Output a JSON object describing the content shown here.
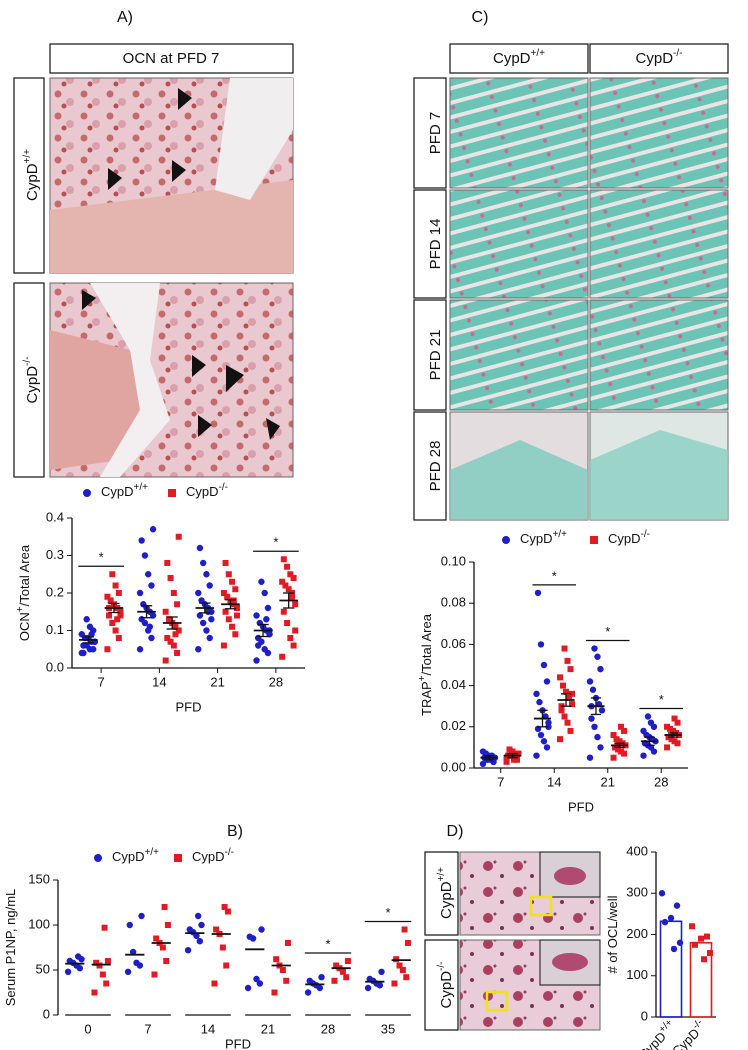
{
  "panels": {
    "A": {
      "label": "A)",
      "header": "OCN at PFD 7",
      "rows": [
        {
          "base": "CypD",
          "sup": "+/+"
        },
        {
          "base": "CypD",
          "sup": "-/-"
        }
      ]
    },
    "C": {
      "label": "C)",
      "columns": [
        {
          "base": "CypD",
          "sup": "+/+"
        },
        {
          "base": "CypD",
          "sup": "-/-"
        }
      ],
      "rows": [
        "PFD 7",
        "PFD 14",
        "PFD 21",
        "PFD 28"
      ]
    },
    "B": {
      "label": "B)"
    },
    "D": {
      "label": "D)",
      "rows": [
        {
          "base": "CypD",
          "sup": "+/+"
        },
        {
          "base": "CypD",
          "sup": "-/-"
        }
      ]
    }
  },
  "chart_data": [
    {
      "type": "dot",
      "ylabel": {
        "base": "OCN",
        "sup": "+",
        "rest": "/Total Area"
      },
      "xlabel": "PFD",
      "categories": [
        "7",
        "14",
        "21",
        "28"
      ],
      "ylim": [
        0,
        0.4
      ],
      "yticks": [
        {
          "value": 0,
          "label": "0.0"
        },
        0.1,
        0.2,
        0.3,
        0.4
      ],
      "series": [
        {
          "name": {
            "base": "CypD",
            "sup": "+/+"
          },
          "color": "#1f1fc8",
          "marker": "circle",
          "values": [
            [
              0.04,
              0.05,
              0.05,
              0.06,
              0.06,
              0.07,
              0.07,
              0.08,
              0.08,
              0.09,
              0.1,
              0.11,
              0.13,
              0.04,
              0.07,
              0.09
            ],
            [
              0.05,
              0.08,
              0.1,
              0.12,
              0.13,
              0.14,
              0.15,
              0.16,
              0.17,
              0.2,
              0.22,
              0.25,
              0.3,
              0.34,
              0.37,
              0.11
            ],
            [
              0.05,
              0.08,
              0.1,
              0.12,
              0.14,
              0.15,
              0.16,
              0.17,
              0.18,
              0.2,
              0.22,
              0.25,
              0.28,
              0.32,
              0.13,
              0.15
            ],
            [
              0.02,
              0.04,
              0.05,
              0.07,
              0.08,
              0.09,
              0.1,
              0.11,
              0.12,
              0.14,
              0.16,
              0.2,
              0.23,
              0.06,
              0.1,
              0.13
            ]
          ],
          "mean": [
            0.075,
            0.15,
            0.16,
            0.1
          ],
          "sem": [
            0.008,
            0.016,
            0.013,
            0.016
          ]
        },
        {
          "name": {
            "base": "CypD",
            "sup": "-/-"
          },
          "color": "#e01b24",
          "marker": "square",
          "values": [
            [
              0.05,
              0.08,
              0.1,
              0.12,
              0.14,
              0.15,
              0.16,
              0.17,
              0.18,
              0.19,
              0.2,
              0.22,
              0.25,
              0.16,
              0.14,
              0.13
            ],
            [
              0.02,
              0.04,
              0.06,
              0.07,
              0.08,
              0.1,
              0.11,
              0.12,
              0.13,
              0.15,
              0.17,
              0.2,
              0.24,
              0.28,
              0.35,
              0.09
            ],
            [
              0.06,
              0.09,
              0.11,
              0.13,
              0.15,
              0.16,
              0.17,
              0.18,
              0.19,
              0.2,
              0.21,
              0.23,
              0.25,
              0.28,
              0.14,
              0.18
            ],
            [
              0.03,
              0.06,
              0.08,
              0.12,
              0.15,
              0.17,
              0.19,
              0.21,
              0.22,
              0.23,
              0.24,
              0.25,
              0.27,
              0.29,
              0.1,
              0.2
            ]
          ],
          "mean": [
            0.16,
            0.12,
            0.17,
            0.18
          ],
          "sem": [
            0.012,
            0.016,
            0.012,
            0.02
          ]
        }
      ],
      "significance": [
        {
          "category": 0,
          "label": "*"
        },
        {
          "category": 3,
          "label": "*"
        }
      ]
    },
    {
      "type": "dot",
      "ylabel": {
        "base": "TRAP",
        "sup": "+",
        "rest": "/Total Area"
      },
      "xlabel": "PFD",
      "categories": [
        "7",
        "14",
        "21",
        "28"
      ],
      "ylim": [
        0,
        0.1
      ],
      "yticks": [
        {
          "value": 0,
          "label": "0.00"
        },
        {
          "value": 0.02,
          "label": "0.02"
        },
        {
          "value": 0.04,
          "label": "0.04"
        },
        {
          "value": 0.06,
          "label": "0.06"
        },
        {
          "value": 0.08,
          "label": "0.08"
        },
        {
          "value": 0.1,
          "label": "0.10"
        }
      ],
      "series": [
        {
          "name": {
            "base": "CypD",
            "sup": "+/+"
          },
          "color": "#1f1fc8",
          "marker": "circle",
          "values": [
            [
              0.002,
              0.003,
              0.004,
              0.004,
              0.005,
              0.005,
              0.006,
              0.006,
              0.007,
              0.008,
              0.003,
              0.005
            ],
            [
              0.006,
              0.01,
              0.013,
              0.016,
              0.019,
              0.022,
              0.025,
              0.028,
              0.032,
              0.036,
              0.042,
              0.05,
              0.06,
              0.085,
              0.02
            ],
            [
              0.005,
              0.01,
              0.015,
              0.02,
              0.024,
              0.028,
              0.031,
              0.034,
              0.038,
              0.042,
              0.048,
              0.054,
              0.058,
              0.03
            ],
            [
              0.006,
              0.008,
              0.01,
              0.011,
              0.012,
              0.013,
              0.014,
              0.015,
              0.016,
              0.018,
              0.02,
              0.022,
              0.025,
              0.012
            ]
          ],
          "mean": [
            0.005,
            0.024,
            0.03,
            0.013
          ],
          "sem": [
            0.001,
            0.004,
            0.004,
            0.002
          ]
        },
        {
          "name": {
            "base": "CypD",
            "sup": "-/-"
          },
          "color": "#e01b24",
          "marker": "square",
          "values": [
            [
              0.003,
              0.004,
              0.005,
              0.006,
              0.006,
              0.007,
              0.007,
              0.008,
              0.009,
              0.005,
              0.006,
              0.004
            ],
            [
              0.014,
              0.018,
              0.022,
              0.025,
              0.028,
              0.031,
              0.034,
              0.037,
              0.04,
              0.044,
              0.048,
              0.052,
              0.058,
              0.03,
              0.036
            ],
            [
              0.005,
              0.007,
              0.008,
              0.009,
              0.01,
              0.011,
              0.012,
              0.013,
              0.014,
              0.016,
              0.018,
              0.02,
              0.011
            ],
            [
              0.01,
              0.012,
              0.013,
              0.014,
              0.015,
              0.016,
              0.017,
              0.018,
              0.019,
              0.02,
              0.022,
              0.024,
              0.015
            ]
          ],
          "mean": [
            0.006,
            0.033,
            0.011,
            0.016
          ],
          "sem": [
            0.001,
            0.003,
            0.001,
            0.001
          ]
        }
      ],
      "significance": [
        {
          "category": 1,
          "label": "*"
        },
        {
          "category": 2,
          "label": "*"
        },
        {
          "category": 3,
          "label": "*"
        }
      ]
    },
    {
      "type": "dot",
      "ylabel": {
        "base": "Serum P1NP, ng/mL"
      },
      "xlabel": "PFD",
      "categories": [
        "0",
        "7",
        "14",
        "21",
        "28",
        "35"
      ],
      "ylim": [
        0,
        150
      ],
      "yticks": [
        0,
        50,
        100,
        150
      ],
      "series": [
        {
          "name": {
            "base": "CypD",
            "sup": "+/+"
          },
          "color": "#1f1fc8",
          "marker": "circle",
          "values": [
            [
              48,
              52,
              55,
              58,
              60,
              62,
              65
            ],
            [
              48,
              55,
              58,
              70,
              100,
              110
            ],
            [
              72,
              82,
              88,
              92,
              95,
              100,
              110
            ],
            [
              30,
              35,
              40,
              85,
              87,
              95
            ],
            [
              25,
              30,
              33,
              35,
              38,
              42
            ],
            [
              30,
              33,
              35,
              38,
              40,
              48
            ]
          ],
          "mean": [
            57,
            67,
            91,
            73,
            34,
            37
          ]
        },
        {
          "name": {
            "base": "CypD",
            "sup": "-/-"
          },
          "color": "#e01b24",
          "marker": "square",
          "values": [
            [
              25,
              35,
              45,
              55,
              58,
              60,
              97
            ],
            [
              45,
              60,
              75,
              80,
              85,
              100,
              120
            ],
            [
              35,
              55,
              75,
              90,
              95,
              115,
              120
            ],
            [
              25,
              38,
              50,
              55,
              62,
              80
            ],
            [
              38,
              42,
              48,
              52,
              55,
              60
            ],
            [
              35,
              42,
              50,
              55,
              62,
              80,
              95
            ]
          ],
          "mean": [
            56,
            80,
            90,
            55,
            52,
            61
          ]
        }
      ],
      "significance": [
        {
          "category": 4,
          "label": "*"
        },
        {
          "category": 5,
          "label": "*"
        }
      ]
    },
    {
      "type": "bar",
      "ylabel": {
        "base": "# of OCL/well"
      },
      "categories": [
        {
          "base": "CypD",
          "sup": "+/+"
        },
        {
          "base": "CypD",
          "sup": "-/-"
        }
      ],
      "values": [
        232,
        180
      ],
      "colors": [
        "#1f1fc8",
        "#e01b24"
      ],
      "ylim": [
        0,
        400
      ],
      "yticks": [
        0,
        100,
        200,
        300,
        400
      ],
      "points": [
        [
          300,
          270,
          240,
          230,
          180,
          165
        ],
        [
          220,
          195,
          190,
          175,
          155,
          140
        ]
      ]
    }
  ]
}
